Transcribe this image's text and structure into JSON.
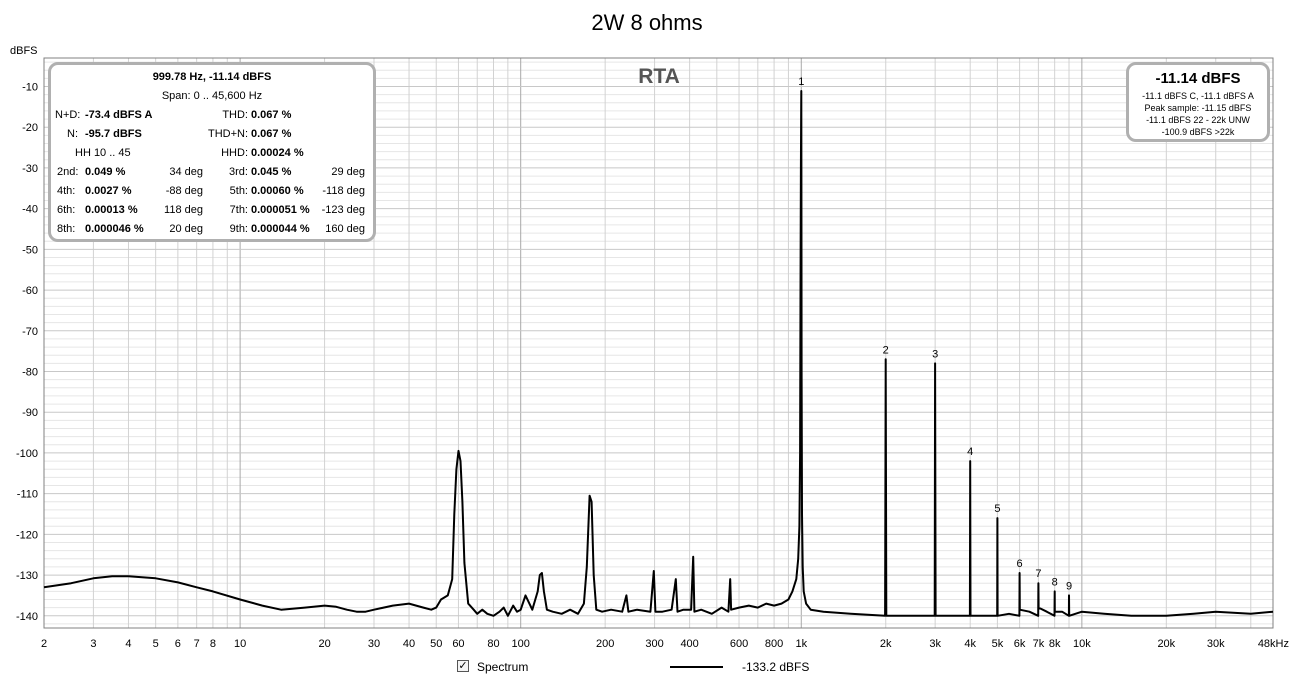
{
  "chart_data": {
    "type": "line",
    "title": "2W 8 ohms",
    "ylabel": "dBFS",
    "xlabel": "",
    "xscale": "log",
    "xlim": [
      2,
      48000
    ],
    "ylim": [
      -143,
      -3
    ],
    "grid": true,
    "watermark": "RTA",
    "y_ticks": [
      -10,
      -20,
      -30,
      -40,
      -50,
      -60,
      -70,
      -80,
      -90,
      -100,
      -110,
      -120,
      -130,
      -140
    ],
    "x_ticks": [
      {
        "v": 2,
        "label": "2"
      },
      {
        "v": 3,
        "label": "3"
      },
      {
        "v": 4,
        "label": "4"
      },
      {
        "v": 5,
        "label": "5"
      },
      {
        "v": 6,
        "label": "6"
      },
      {
        "v": 7,
        "label": "7"
      },
      {
        "v": 8,
        "label": "8"
      },
      {
        "v": 10,
        "label": "10"
      },
      {
        "v": 20,
        "label": "20"
      },
      {
        "v": 30,
        "label": "30"
      },
      {
        "v": 40,
        "label": "40"
      },
      {
        "v": 50,
        "label": "50"
      },
      {
        "v": 60,
        "label": "60"
      },
      {
        "v": 80,
        "label": "80"
      },
      {
        "v": 100,
        "label": "100"
      },
      {
        "v": 200,
        "label": "200"
      },
      {
        "v": 300,
        "label": "300"
      },
      {
        "v": 400,
        "label": "400"
      },
      {
        "v": 600,
        "label": "600"
      },
      {
        "v": 800,
        "label": "800"
      },
      {
        "v": 1000,
        "label": "1k"
      },
      {
        "v": 2000,
        "label": "2k"
      },
      {
        "v": 3000,
        "label": "3k"
      },
      {
        "v": 4000,
        "label": "4k"
      },
      {
        "v": 5000,
        "label": "5k"
      },
      {
        "v": 6000,
        "label": "6k"
      },
      {
        "v": 7000,
        "label": "7k"
      },
      {
        "v": 8000,
        "label": "8k"
      },
      {
        "v": 10000,
        "label": "10k"
      },
      {
        "v": 20000,
        "label": "20k"
      },
      {
        "v": 30000,
        "label": "30k"
      },
      {
        "v": 48000,
        "label": "48kHz"
      }
    ],
    "series": [
      {
        "name": "Spectrum",
        "color": "#000000",
        "x": [
          2,
          2.5,
          3,
          3.5,
          4,
          5,
          6,
          7,
          8,
          10,
          12,
          14,
          17,
          20,
          22,
          24,
          26,
          28,
          30,
          35,
          40,
          45,
          48,
          50,
          52,
          55,
          57,
          58,
          59,
          60,
          61,
          62,
          63,
          65,
          68,
          70,
          73,
          76,
          80,
          84,
          87,
          90,
          94,
          97,
          100,
          104,
          110,
          115,
          117,
          119,
          121,
          124,
          130,
          140,
          150,
          160,
          168,
          172,
          176,
          179,
          182,
          186,
          195,
          210,
          230,
          238,
          242,
          260,
          290,
          298,
          302,
          320,
          345,
          357,
          362,
          380,
          405,
          412,
          416,
          440,
          480,
          520,
          550,
          558,
          562,
          600,
          650,
          700,
          750,
          800,
          850,
          900,
          930,
          960,
          975,
          985,
          990,
          994,
          997,
          999,
          1000,
          1001,
          1003,
          1006,
          1012,
          1020,
          1040,
          1080,
          1200,
          1500,
          1990,
          2000,
          2010,
          2500,
          2990,
          3000,
          3010,
          3500,
          3990,
          4000,
          4010,
          4500,
          4990,
          5000,
          5010,
          5500,
          5990,
          6000,
          6010,
          6500,
          6990,
          7000,
          7010,
          7500,
          7990,
          8000,
          8010,
          8500,
          8990,
          9000,
          9010,
          10000,
          12000,
          15000,
          20000,
          25000,
          30000,
          40000,
          48000
        ],
        "y": [
          -133,
          -132,
          -130.8,
          -130.3,
          -130.3,
          -130.8,
          -131.8,
          -133,
          -134,
          -136,
          -137.5,
          -138.5,
          -138,
          -137.5,
          -137.8,
          -138.5,
          -139,
          -139,
          -138.5,
          -137.5,
          -137,
          -138,
          -138.5,
          -138,
          -136,
          -135,
          -131,
          -115,
          -104,
          -99.5,
          -102,
          -112,
          -127,
          -137,
          -138.5,
          -139.5,
          -138.5,
          -139.5,
          -140,
          -139,
          -138,
          -140,
          -137.5,
          -139,
          -138.5,
          -135,
          -138.5,
          -134,
          -130,
          -129.5,
          -134,
          -138.5,
          -139,
          -139.5,
          -138.5,
          -139.5,
          -137,
          -128,
          -110.5,
          -112,
          -130,
          -138.5,
          -139,
          -138.5,
          -139,
          -135,
          -139,
          -138.5,
          -139,
          -129,
          -139,
          -139,
          -138.5,
          -131,
          -139,
          -138.5,
          -138.5,
          -125.5,
          -139,
          -138.5,
          -139.5,
          -138,
          -139,
          -131,
          -138.5,
          -138,
          -137.5,
          -138,
          -137,
          -137.5,
          -137,
          -136,
          -134,
          -131,
          -126,
          -118,
          -100,
          -60,
          -30,
          -15,
          -11.1,
          -30,
          -80,
          -115,
          -128,
          -134,
          -137,
          -138.5,
          -139,
          -139.5,
          -140,
          -77,
          -140,
          -140,
          -140,
          -78,
          -140,
          -140,
          -140,
          -102,
          -140,
          -140,
          -140,
          -116,
          -140,
          -139.5,
          -140,
          -129.5,
          -138.5,
          -139,
          -140,
          -132,
          -138,
          -139,
          -140,
          -134,
          -139,
          -139,
          -140,
          -135,
          -140,
          -139,
          -139.5,
          -140,
          -140,
          -139.5,
          -139,
          -139.5,
          -139
        ]
      }
    ],
    "harmonic_labels": [
      {
        "label": "1",
        "x": 1000,
        "y": -11.1
      },
      {
        "label": "2",
        "x": 2000,
        "y": -77
      },
      {
        "label": "3",
        "x": 3000,
        "y": -78
      },
      {
        "label": "4",
        "x": 4000,
        "y": -102
      },
      {
        "label": "5",
        "x": 5000,
        "y": -116
      },
      {
        "label": "6",
        "x": 6000,
        "y": -129.5
      },
      {
        "label": "7",
        "x": 7000,
        "y": -132
      },
      {
        "label": "8",
        "x": 8000,
        "y": -134
      },
      {
        "label": "9",
        "x": 9000,
        "y": -135
      }
    ]
  },
  "stats_panel": {
    "header_line1": "999.78 Hz, -11.14 dBFS",
    "header_line2": "Span: 0 .. 45,600 Hz",
    "nd_label": "N+D:",
    "nd_value": "-73.4 dBFS A",
    "thd_label": "THD:",
    "thd_value": "0.067 %",
    "n_label": "N:",
    "n_value": "-95.7 dBFS",
    "thdn_label": "THD+N:",
    "thdn_value": "0.067 %",
    "hh_label": "HH 10 .. 45",
    "hhd_label": "HHD:",
    "hhd_value": "0.00024 %",
    "harmonics": [
      {
        "label": "2nd:",
        "value": "0.049 %",
        "phase": "34 deg"
      },
      {
        "label": "3rd:",
        "value": "0.045 %",
        "phase": "29 deg"
      },
      {
        "label": "4th:",
        "value": "0.0027 %",
        "phase": "-88 deg"
      },
      {
        "label": "5th:",
        "value": "0.00060 %",
        "phase": "-118 deg"
      },
      {
        "label": "6th:",
        "value": "0.00013 %",
        "phase": "118 deg"
      },
      {
        "label": "7th:",
        "value": "0.000051 %",
        "phase": "-123 deg"
      },
      {
        "label": "8th:",
        "value": "0.000046 %",
        "phase": "20 deg"
      },
      {
        "label": "9th:",
        "value": "0.000044 %",
        "phase": "160 deg"
      }
    ]
  },
  "level_panel": {
    "main": "-11.14 dBFS",
    "line1": "-11.1 dBFS C, -11.1 dBFS A",
    "line2": "Peak sample: -11.15 dBFS",
    "line3": "-11.1 dBFS 22 - 22k UNW",
    "line4": "-100.9 dBFS >22k"
  },
  "legend": {
    "checkbox_mark": "✓",
    "series_label": "Spectrum",
    "cursor_value": "-133.2 dBFS"
  }
}
